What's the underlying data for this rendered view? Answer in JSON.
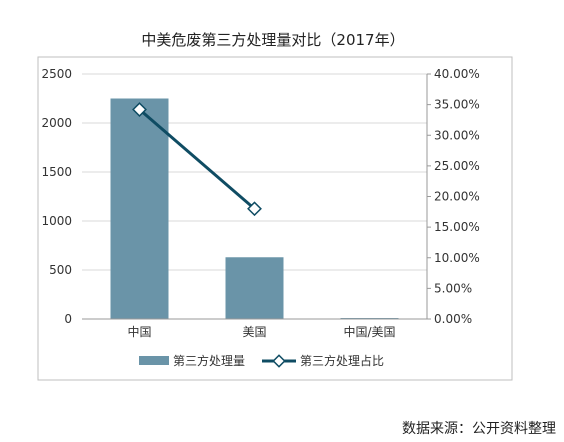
{
  "chart_data": {
    "type": "bar",
    "title": "中美危废第三方处理量对比（2017年）",
    "categories": [
      "中国",
      "美国",
      "中国/美国"
    ],
    "series": [
      {
        "name": "第三方处理量",
        "type": "bar",
        "axis": "left",
        "values": [
          2250,
          630,
          10
        ]
      },
      {
        "name": "第三方处理占比",
        "type": "line",
        "axis": "right",
        "values": [
          34.2,
          18.0,
          null
        ]
      }
    ],
    "ylim_left": [
      0,
      2500
    ],
    "yticks_left": [
      "0",
      "500",
      "1000",
      "1500",
      "2000",
      "2500"
    ],
    "ylim_right": [
      0,
      40
    ],
    "yticks_right": [
      "0.00%",
      "5.00%",
      "10.00%",
      "15.00%",
      "20.00%",
      "25.00%",
      "30.00%",
      "35.00%",
      "40.00%"
    ],
    "grid": true,
    "legend_position": "bottom",
    "colors": {
      "bar": "#6a94a8",
      "line": "#0f4c63",
      "grid": "#d9d9d9",
      "axis": "#999999"
    }
  },
  "source_text": "数据来源：公开资料整理"
}
